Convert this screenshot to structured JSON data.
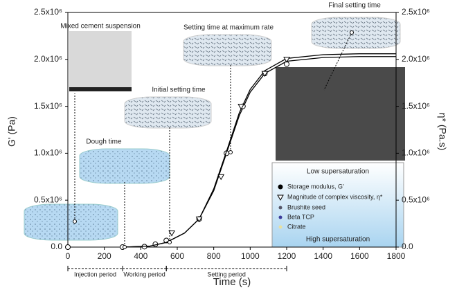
{
  "chart_data": {
    "type": "line",
    "xlabel": "Time (s)",
    "ylabel": "G' (Pa)",
    "y2label": "η* (Pa.s)",
    "xlim": [
      0,
      1800
    ],
    "xticks": [
      0,
      200,
      400,
      600,
      800,
      1000,
      1200,
      1400,
      1600,
      1800
    ],
    "ylim": [
      0,
      2500000
    ],
    "yticks": [
      {
        "value": 0,
        "label": "0.0"
      },
      {
        "value": 500000,
        "label": "0.5x10⁶"
      },
      {
        "value": 1000000,
        "label": "1.0x10⁶"
      },
      {
        "value": 1500000,
        "label": "1.5x10⁶"
      },
      {
        "value": 2000000,
        "label": "2.0x10⁶"
      },
      {
        "value": 2500000,
        "label": "2.5x10⁶"
      }
    ],
    "y2lim": [
      0,
      2500000
    ],
    "y2ticks": [
      {
        "value": 0,
        "label": "0.0"
      },
      {
        "value": 500000,
        "label": "0.5x10⁶"
      },
      {
        "value": 1000000,
        "label": "1.0x10⁶"
      },
      {
        "value": 1500000,
        "label": "1.5x10⁶"
      },
      {
        "value": 2000000,
        "label": "2.0x10⁶"
      },
      {
        "value": 2500000,
        "label": "2.5x10⁶"
      }
    ],
    "series": [
      {
        "name": "Storage modulus, G'",
        "color": "#000000",
        "marker": "circle",
        "x": [
          0,
          300,
          420,
          480,
          540,
          720,
          870,
          960,
          1080,
          1200
        ],
        "values": [
          0,
          0,
          5000,
          30000,
          70000,
          300000,
          1000000,
          1500000,
          1850000,
          1950000
        ],
        "curve": {
          "x": [
            300,
            450,
            540,
            640,
            720,
            800,
            870,
            940,
            1000,
            1080,
            1200,
            1400,
            1600,
            1800
          ],
          "values": [
            0,
            10000,
            50000,
            150000,
            300000,
            600000,
            1000000,
            1400000,
            1650000,
            1850000,
            1980000,
            2020000,
            2030000,
            2030000
          ]
        }
      },
      {
        "name": "Magnitude of complex viscosity, η*",
        "color": "#000000",
        "marker": "triangle",
        "axis": "y2",
        "x": [
          570,
          720,
          840,
          950,
          1080,
          1200
        ],
        "values": [
          150000,
          300000,
          750000,
          1500000,
          1850000,
          2000000
        ],
        "curve": {
          "x": [
            300,
            450,
            540,
            640,
            720,
            800,
            870,
            940,
            1000,
            1080,
            1200,
            1400,
            1600,
            1800
          ],
          "values": [
            0,
            10000,
            50000,
            150000,
            300000,
            620000,
            1020000,
            1430000,
            1680000,
            1880000,
            2010000,
            2050000,
            2060000,
            2060000
          ]
        }
      }
    ],
    "legend_title": "Low supersaturation",
    "legend_extra": [
      "Brushite seed",
      "Beta TCP",
      "Citrate"
    ],
    "legend_footer": "High supersaturation",
    "annotations": [
      "Mixed cement suspension",
      "Dough time",
      "Initial setting time",
      "Setting time at maximum rate",
      "Final setting time"
    ],
    "periods": [
      {
        "label": "Injection period",
        "start": 0,
        "end": 300
      },
      {
        "label": "Working period",
        "start": 300,
        "end": 540
      },
      {
        "label": "Setting period",
        "start": 540,
        "end": 1200
      }
    ]
  }
}
